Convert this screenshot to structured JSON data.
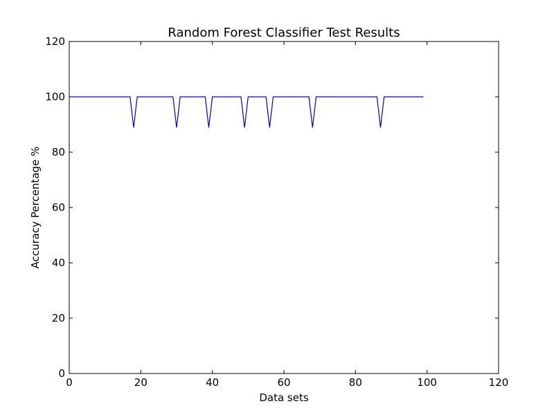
{
  "chart_data": {
    "type": "line",
    "title": "Random Forest Classifier Test Results",
    "xlabel": "Data sets",
    "ylabel": "Accuracy Percentage %",
    "xlim": [
      0,
      120
    ],
    "ylim": [
      0,
      120
    ],
    "xticks": [
      0,
      20,
      40,
      60,
      80,
      100,
      120
    ],
    "yticks": [
      0,
      20,
      40,
      60,
      80,
      100,
      120
    ],
    "grid": false,
    "line_color": "#0000bf",
    "series": [
      {
        "x": [
          0,
          17,
          18,
          19,
          29,
          30,
          31,
          38,
          39,
          40,
          48,
          49,
          50,
          55,
          56,
          57,
          67,
          68,
          69,
          86,
          87,
          88,
          99
        ],
        "values": [
          100,
          100,
          88.9,
          100,
          100,
          88.9,
          100,
          100,
          88.9,
          100,
          100,
          88.9,
          100,
          100,
          88.9,
          100,
          100,
          88.9,
          100,
          100,
          88.9,
          100,
          100
        ]
      }
    ]
  }
}
